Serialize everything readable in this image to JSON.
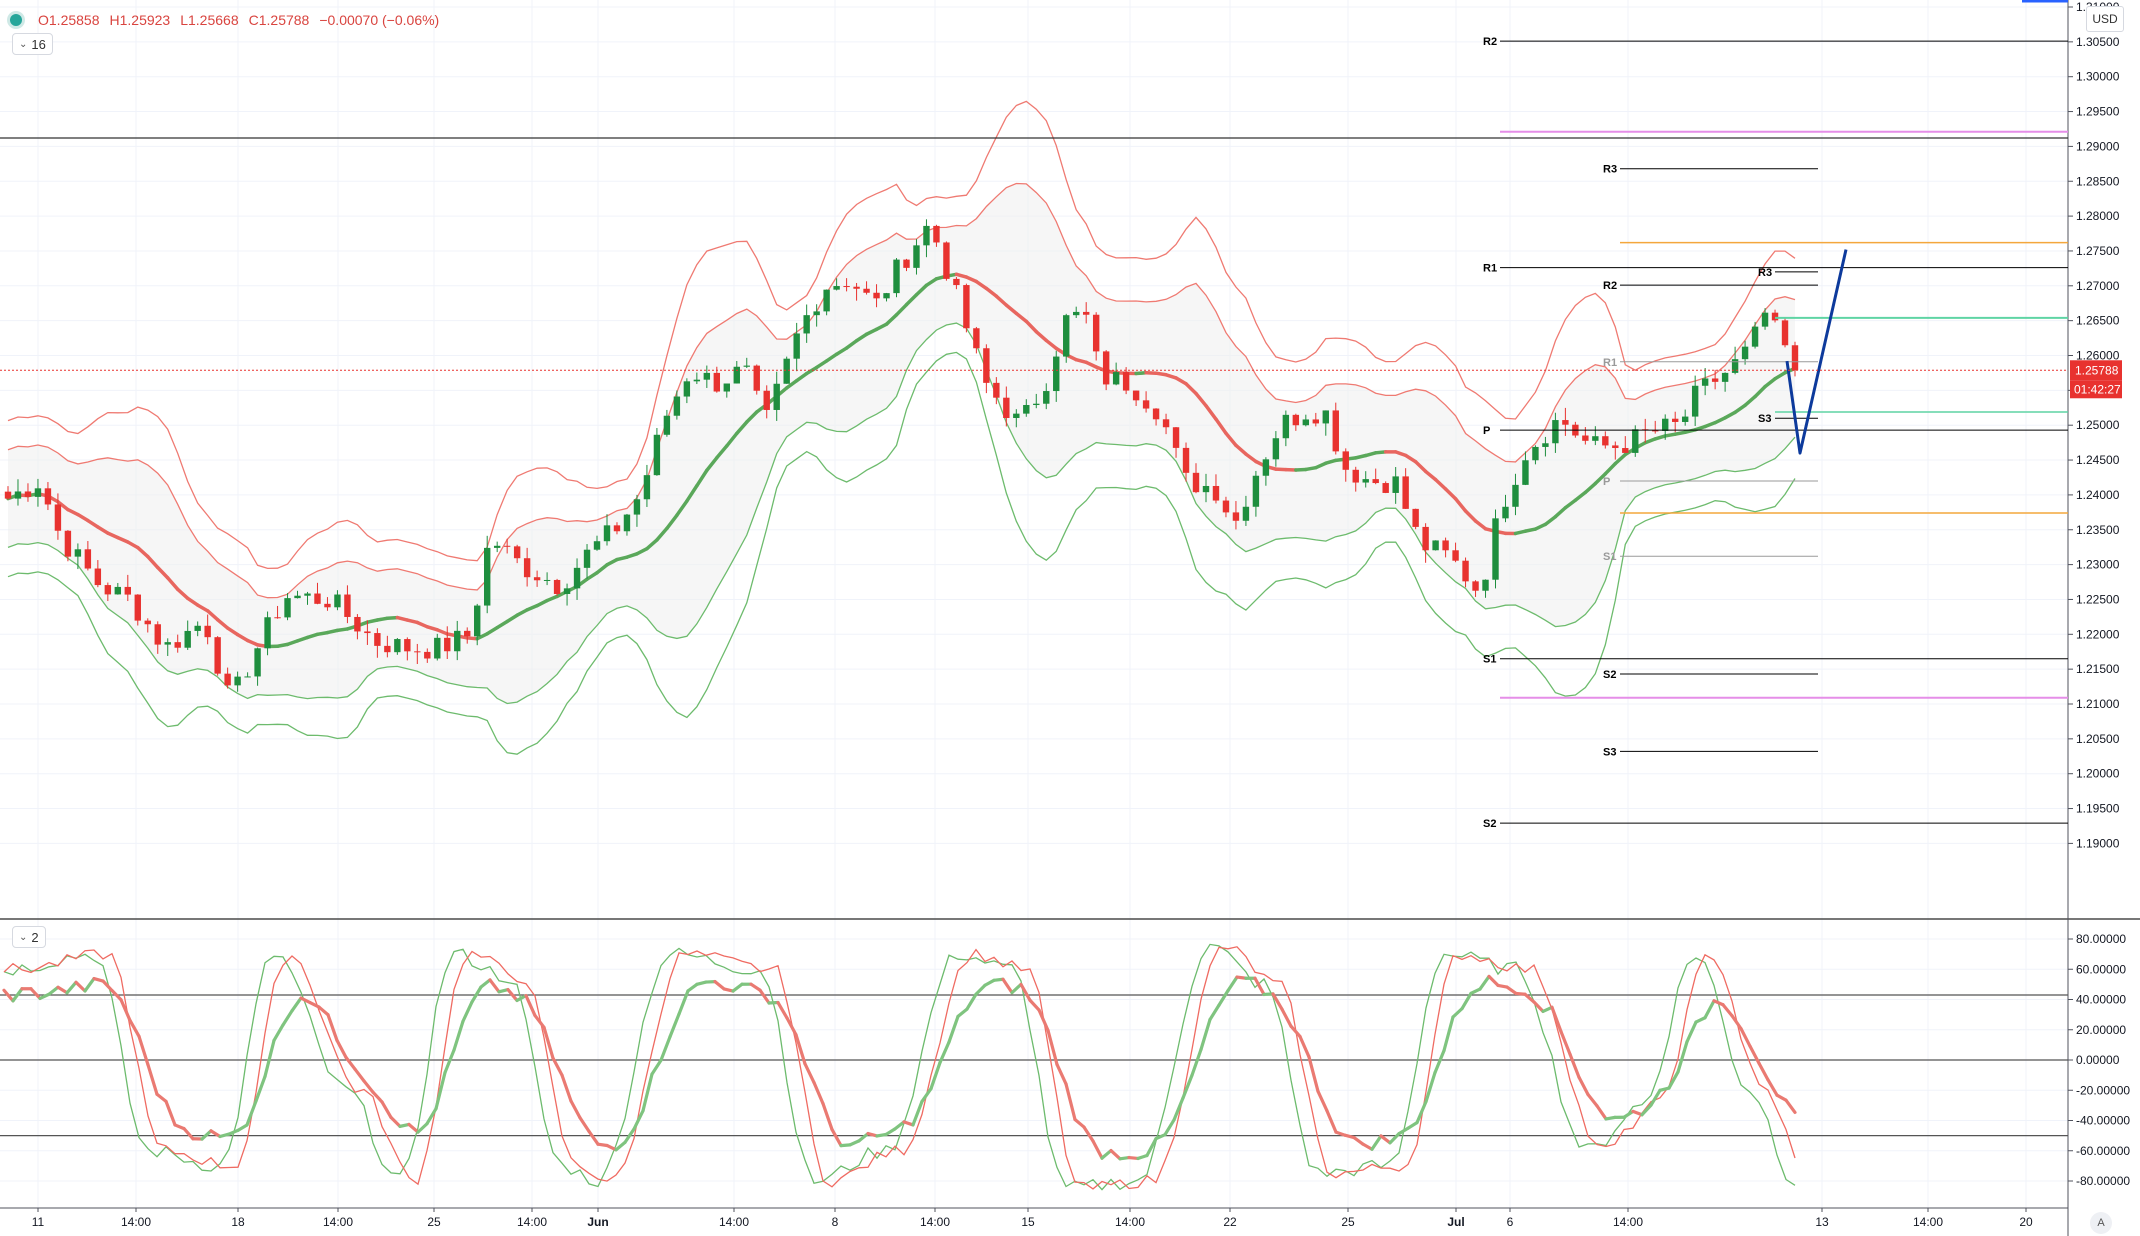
{
  "legend": {
    "open": "O1.25858",
    "high": "H1.25923",
    "low": "L1.25668",
    "close": "C1.25788",
    "change": "−0.00070 (−0.06%)"
  },
  "main_pane": {
    "interval_badge": "16"
  },
  "osc_pane": {
    "badge": "2"
  },
  "currency": "USD",
  "auto_label": "A",
  "last_price": {
    "value": "1.25788",
    "countdown": "01:42:27"
  },
  "colors": {
    "up": "#1e8e3e",
    "down": "#e8322f",
    "upper_band": "#ef7a72",
    "lower_band": "#6dbb6d",
    "basis_up": "#5aa85a",
    "basis_down": "#e8665f",
    "pivot_line": "#000000",
    "forecast": "#0d3a9c",
    "orange": "#f4a73c",
    "magenta": "#e58ee8",
    "green_level": "#5fd4a4",
    "price_tag": "#e8322f"
  },
  "chart_data": [
    {
      "type": "candlestick",
      "title": "",
      "ylim": [
        1.186,
        1.317
      ],
      "y_ticks": [
        "1.31000",
        "1.30500",
        "1.30000",
        "1.29500",
        "1.29000",
        "1.28500",
        "1.28000",
        "1.27500",
        "1.27000",
        "1.26500",
        "1.26000",
        "1.25500",
        "1.25000",
        "1.24500",
        "1.24000",
        "1.23500",
        "1.23000",
        "1.22500",
        "1.22000",
        "1.21500",
        "1.21000",
        "1.20500",
        "1.20000",
        "1.19500",
        "1.19000"
      ],
      "top_tick_partial": "1.3",
      "x_ticks": [
        "11",
        "14:00",
        "18",
        "14:00",
        "25",
        "14:00",
        "Jun",
        "14:00",
        "8",
        "14:00",
        "15",
        "14:00",
        "22",
        "25",
        "Jul",
        "6",
        "14:00",
        "13",
        "14:00",
        "20"
      ],
      "indicators": [
        "Bollinger Bands (inner)",
        "Bollinger Bands (outer)",
        "Weekly/Monthly pivot points"
      ],
      "pivot_levels": [
        {
          "label": "R2",
          "value": 1.3051
        },
        {
          "label": "R3",
          "value": 1.2868
        },
        {
          "label": "R1",
          "value": 1.2726
        },
        {
          "label": "R2",
          "value": 1.2701
        },
        {
          "label": "R3",
          "value": 1.272
        },
        {
          "label": "R1",
          "value": 1.2591
        },
        {
          "label": "P",
          "value": 1.2493
        },
        {
          "label": "S3",
          "value": 1.251
        },
        {
          "label": "P",
          "value": 1.242
        },
        {
          "label": "S1",
          "value": 1.2312
        },
        {
          "label": "S1",
          "value": 1.2165
        },
        {
          "label": "S2",
          "value": 1.2143
        },
        {
          "label": "S3",
          "value": 1.2032
        },
        {
          "label": "S2",
          "value": 1.1929
        }
      ],
      "horizontal_lines": [
        1.2912,
        1.2921,
        1.2762,
        1.2654,
        1.2519,
        1.2374,
        1.2109
      ],
      "last_close": 1.25788,
      "forecast_path": [
        [
          1.2578
        ],
        [
          1.246
        ],
        [
          1.2752
        ]
      ],
      "series_summary": {
        "start": 1.2395,
        "may18_low": 1.2095,
        "jun10_high": 1.2812,
        "jun29_low": 1.2258,
        "jul9_high": 1.267,
        "last": 1.25788
      }
    },
    {
      "type": "line",
      "title": "",
      "ylim": [
        -90,
        90
      ],
      "y_ticks": [
        "80.00000",
        "60.00000",
        "40.00000",
        "20.00000",
        "0.00000",
        "-20.00000",
        "-40.00000",
        "-60.00000",
        "-80.00000"
      ],
      "h_levels": [
        43,
        0,
        -50
      ],
      "series_names": []
    }
  ]
}
